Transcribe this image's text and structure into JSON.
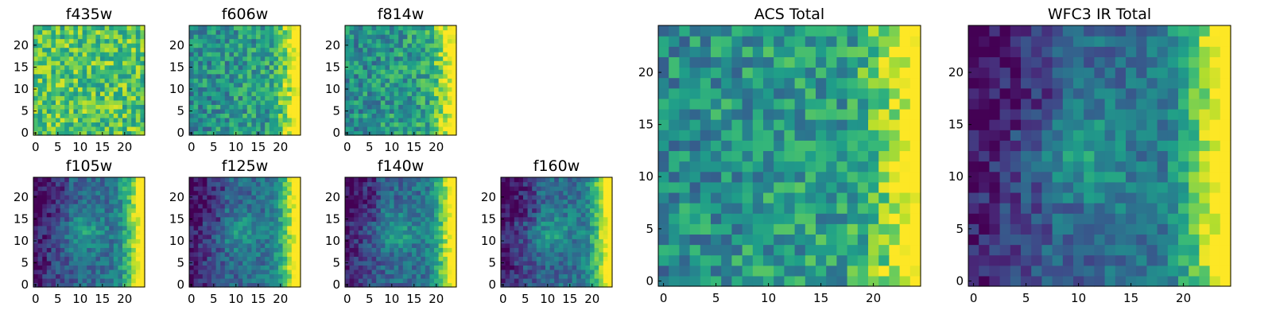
{
  "chart_data": [
    {
      "type": "heatmap",
      "title": "f435w",
      "x_ticks": [
        "0",
        "5",
        "10",
        "15",
        "20"
      ],
      "y_ticks": [
        "0",
        "5",
        "10",
        "15",
        "20"
      ],
      "xlim": [
        0,
        24
      ],
      "ylim": [
        0,
        24
      ],
      "colormap": "viridis",
      "pattern": "uniform-noisy-bright",
      "grid": false
    },
    {
      "type": "heatmap",
      "title": "f606w",
      "x_ticks": [
        "0",
        "5",
        "10",
        "15",
        "20"
      ],
      "y_ticks": [
        "0",
        "5",
        "10",
        "15",
        "20"
      ],
      "xlim": [
        0,
        24
      ],
      "ylim": [
        0,
        24
      ],
      "colormap": "viridis",
      "pattern": "right-edge-bright",
      "grid": false
    },
    {
      "type": "heatmap",
      "title": "f814w",
      "x_ticks": [
        "0",
        "5",
        "10",
        "15",
        "20"
      ],
      "y_ticks": [
        "0",
        "5",
        "10",
        "15",
        "20"
      ],
      "xlim": [
        0,
        24
      ],
      "ylim": [
        0,
        24
      ],
      "colormap": "viridis",
      "pattern": "right-edge-bright",
      "grid": false
    },
    {
      "type": "heatmap",
      "title": "f105w",
      "x_ticks": [
        "0",
        "5",
        "10",
        "15",
        "20"
      ],
      "y_ticks": [
        "0",
        "5",
        "10",
        "15",
        "20"
      ],
      "xlim": [
        0,
        24
      ],
      "ylim": [
        0,
        24
      ],
      "colormap": "viridis",
      "pattern": "right-edge-bright-center-blob",
      "grid": false
    },
    {
      "type": "heatmap",
      "title": "f125w",
      "x_ticks": [
        "0",
        "5",
        "10",
        "15",
        "20"
      ],
      "y_ticks": [
        "0",
        "5",
        "10",
        "15",
        "20"
      ],
      "xlim": [
        0,
        24
      ],
      "ylim": [
        0,
        24
      ],
      "colormap": "viridis",
      "pattern": "right-edge-bright-center-blob",
      "grid": false
    },
    {
      "type": "heatmap",
      "title": "f140w",
      "x_ticks": [
        "0",
        "5",
        "10",
        "15",
        "20"
      ],
      "y_ticks": [
        "0",
        "5",
        "10",
        "15",
        "20"
      ],
      "xlim": [
        0,
        24
      ],
      "ylim": [
        0,
        24
      ],
      "colormap": "viridis",
      "pattern": "right-edge-bright-center-blob",
      "grid": false
    },
    {
      "type": "heatmap",
      "title": "f160w",
      "x_ticks": [
        "0",
        "5",
        "10",
        "15",
        "20"
      ],
      "y_ticks": [
        "0",
        "5",
        "10",
        "15",
        "20"
      ],
      "xlim": [
        0,
        24
      ],
      "ylim": [
        0,
        24
      ],
      "colormap": "viridis",
      "pattern": "right-edge-bright-center-blob",
      "grid": false
    },
    {
      "type": "heatmap",
      "title": "ACS Total",
      "x_ticks": [
        "0",
        "5",
        "10",
        "15",
        "20"
      ],
      "y_ticks": [
        "0",
        "5",
        "10",
        "15",
        "20"
      ],
      "xlim": [
        0,
        24
      ],
      "ylim": [
        0,
        24
      ],
      "colormap": "viridis",
      "pattern": "right-edge-bright",
      "grid": false
    },
    {
      "type": "heatmap",
      "title": "WFC3 IR Total",
      "x_ticks": [
        "0",
        "5",
        "10",
        "15",
        "20"
      ],
      "y_ticks": [
        "0",
        "5",
        "10",
        "15",
        "20"
      ],
      "xlim": [
        0,
        24
      ],
      "ylim": [
        0,
        24
      ],
      "colormap": "viridis",
      "pattern": "right-edge-bright-center-blob",
      "grid": false
    }
  ]
}
